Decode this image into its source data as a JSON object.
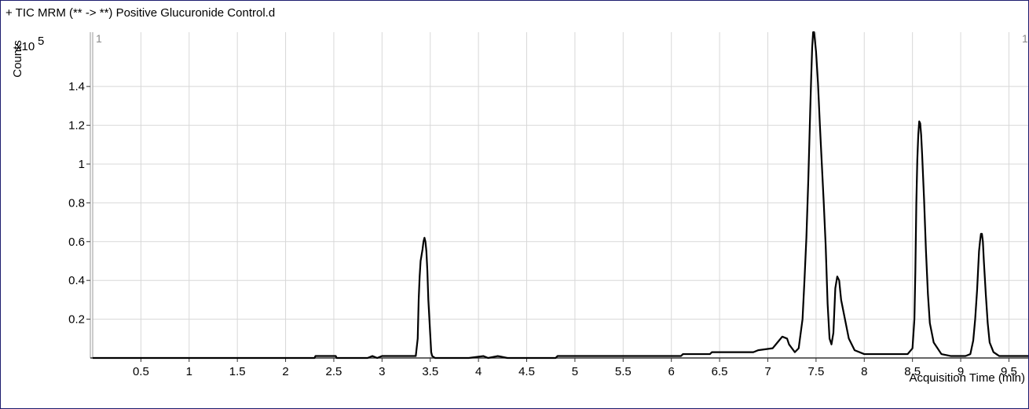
{
  "chart_data": {
    "type": "line",
    "title": "+ TIC MRM (** -> **) Positive Glucuronide Control.d",
    "xlabel": "Acquisition Time (min)",
    "ylabel": "Counts",
    "y_multiplier": "x10",
    "y_exponent": "5",
    "pane_marker_left": "1",
    "pane_marker_right": "1",
    "xlim": [
      0,
      9.7
    ],
    "ylim": [
      0,
      1.68
    ],
    "grid": true,
    "x_ticks": [
      "0.5",
      "1",
      "1.5",
      "2",
      "2.5",
      "3",
      "3.5",
      "4",
      "4.5",
      "5",
      "5.5",
      "6",
      "6.5",
      "7",
      "7.5",
      "8",
      "8.5",
      "9",
      "9.5"
    ],
    "y_ticks": [
      "0.2",
      "0.4",
      "0.6",
      "0.8",
      "1",
      "1.2",
      "1.4"
    ],
    "color": "#000000",
    "series": [
      {
        "x": [
          0,
          2.3,
          2.31,
          2.52,
          2.53,
          2.85,
          2.9,
          2.95,
          3.0,
          3.35,
          3.37,
          3.38,
          3.39,
          3.4,
          3.42,
          3.43,
          3.44,
          3.45,
          3.46,
          3.47,
          3.48,
          3.5,
          3.51,
          3.52,
          3.55,
          3.9,
          4.05,
          4.1,
          4.2,
          4.3,
          4.8,
          4.82,
          5.4,
          5.45,
          6.1,
          6.12,
          6.4,
          6.42,
          6.6,
          6.62,
          6.85,
          6.9,
          7.05,
          7.1,
          7.15,
          7.2,
          7.22,
          7.25,
          7.28,
          7.32,
          7.36,
          7.38,
          7.4,
          7.42,
          7.43,
          7.44,
          7.45,
          7.46,
          7.47,
          7.48,
          7.5,
          7.52,
          7.54,
          7.56,
          7.58,
          7.6,
          7.62,
          7.64,
          7.66,
          7.68,
          7.7,
          7.72,
          7.74,
          7.76,
          7.8,
          7.84,
          7.9,
          8.0,
          8.2,
          8.3,
          8.45,
          8.5,
          8.52,
          8.53,
          8.54,
          8.55,
          8.56,
          8.57,
          8.58,
          8.59,
          8.6,
          8.62,
          8.64,
          8.66,
          8.68,
          8.72,
          8.8,
          8.9,
          9.0,
          9.05,
          9.1,
          9.13,
          9.15,
          9.17,
          9.18,
          9.19,
          9.2,
          9.21,
          9.22,
          9.23,
          9.24,
          9.26,
          9.28,
          9.3,
          9.34,
          9.4,
          9.5,
          9.7
        ],
        "y": [
          0,
          0,
          0.01,
          0.01,
          0,
          0,
          0.01,
          0,
          0.01,
          0.01,
          0.1,
          0.3,
          0.42,
          0.5,
          0.56,
          0.6,
          0.62,
          0.6,
          0.55,
          0.45,
          0.3,
          0.12,
          0.03,
          0.01,
          0,
          0,
          0.01,
          0,
          0.01,
          0,
          0,
          0.01,
          0.01,
          0.01,
          0.01,
          0.02,
          0.02,
          0.03,
          0.03,
          0.03,
          0.03,
          0.04,
          0.05,
          0.08,
          0.11,
          0.1,
          0.07,
          0.05,
          0.03,
          0.05,
          0.2,
          0.4,
          0.62,
          0.92,
          1.1,
          1.28,
          1.45,
          1.6,
          1.68,
          1.68,
          1.58,
          1.42,
          1.2,
          1.0,
          0.8,
          0.58,
          0.28,
          0.1,
          0.07,
          0.13,
          0.36,
          0.42,
          0.4,
          0.3,
          0.2,
          0.1,
          0.04,
          0.02,
          0.02,
          0.02,
          0.02,
          0.05,
          0.2,
          0.45,
          0.8,
          1.02,
          1.15,
          1.22,
          1.21,
          1.15,
          1.05,
          0.82,
          0.55,
          0.33,
          0.18,
          0.08,
          0.02,
          0.01,
          0.01,
          0.01,
          0.02,
          0.09,
          0.2,
          0.35,
          0.45,
          0.55,
          0.6,
          0.64,
          0.64,
          0.6,
          0.5,
          0.33,
          0.18,
          0.08,
          0.03,
          0.01,
          0.01,
          0.01
        ]
      }
    ]
  }
}
